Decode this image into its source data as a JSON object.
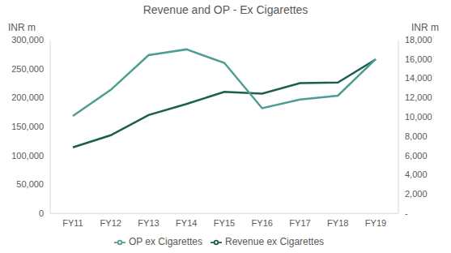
{
  "chart_data": {
    "type": "line",
    "title": "Revenue and OP - Ex Cigarettes",
    "y_label": "INR m",
    "y2_label": "INR m",
    "categories": [
      "FY11",
      "FY12",
      "FY13",
      "FY14",
      "FY15",
      "FY16",
      "FY17",
      "FY18",
      "FY19"
    ],
    "series": [
      {
        "name": "Revenue ex Cigarettes",
        "color": "#1b5e50",
        "values": [
          114000,
          135000,
          170000,
          189000,
          210000,
          207000,
          225000,
          226000,
          266000
        ]
      },
      {
        "name": "OP ex Cigarettes",
        "color": "#4e9d92",
        "axis": "y2",
        "values": [
          10100,
          12800,
          16400,
          17000,
          15600,
          10900,
          11800,
          12200,
          16000
        ]
      }
    ],
    "ylim": [
      0,
      300000
    ],
    "yticks": [
      0,
      {
        "value": 50000,
        "label": "50,000"
      },
      {
        "value": 100000,
        "label": "100,000"
      },
      {
        "value": 150000,
        "label": "150,000"
      },
      {
        "value": 200000,
        "label": "200,000"
      },
      {
        "value": 250000,
        "label": "250,000"
      },
      {
        "value": 300000,
        "label": "300,000"
      }
    ],
    "y2lim": [
      0,
      18000
    ],
    "y2ticks": [
      {
        "value": 0,
        "label": "-"
      },
      {
        "value": 2000,
        "label": "2,000"
      },
      {
        "value": 4000,
        "label": "4,000"
      },
      {
        "value": 6000,
        "label": "6,000"
      },
      {
        "value": 8000,
        "label": "8,000"
      },
      {
        "value": 10000,
        "label": "10,000"
      },
      {
        "value": 12000,
        "label": "12,000"
      },
      {
        "value": 14000,
        "label": "14,000"
      },
      {
        "value": 16000,
        "label": "16,000"
      },
      {
        "value": 18000,
        "label": "18,000"
      }
    ],
    "legend": "bottom",
    "grid": false
  }
}
